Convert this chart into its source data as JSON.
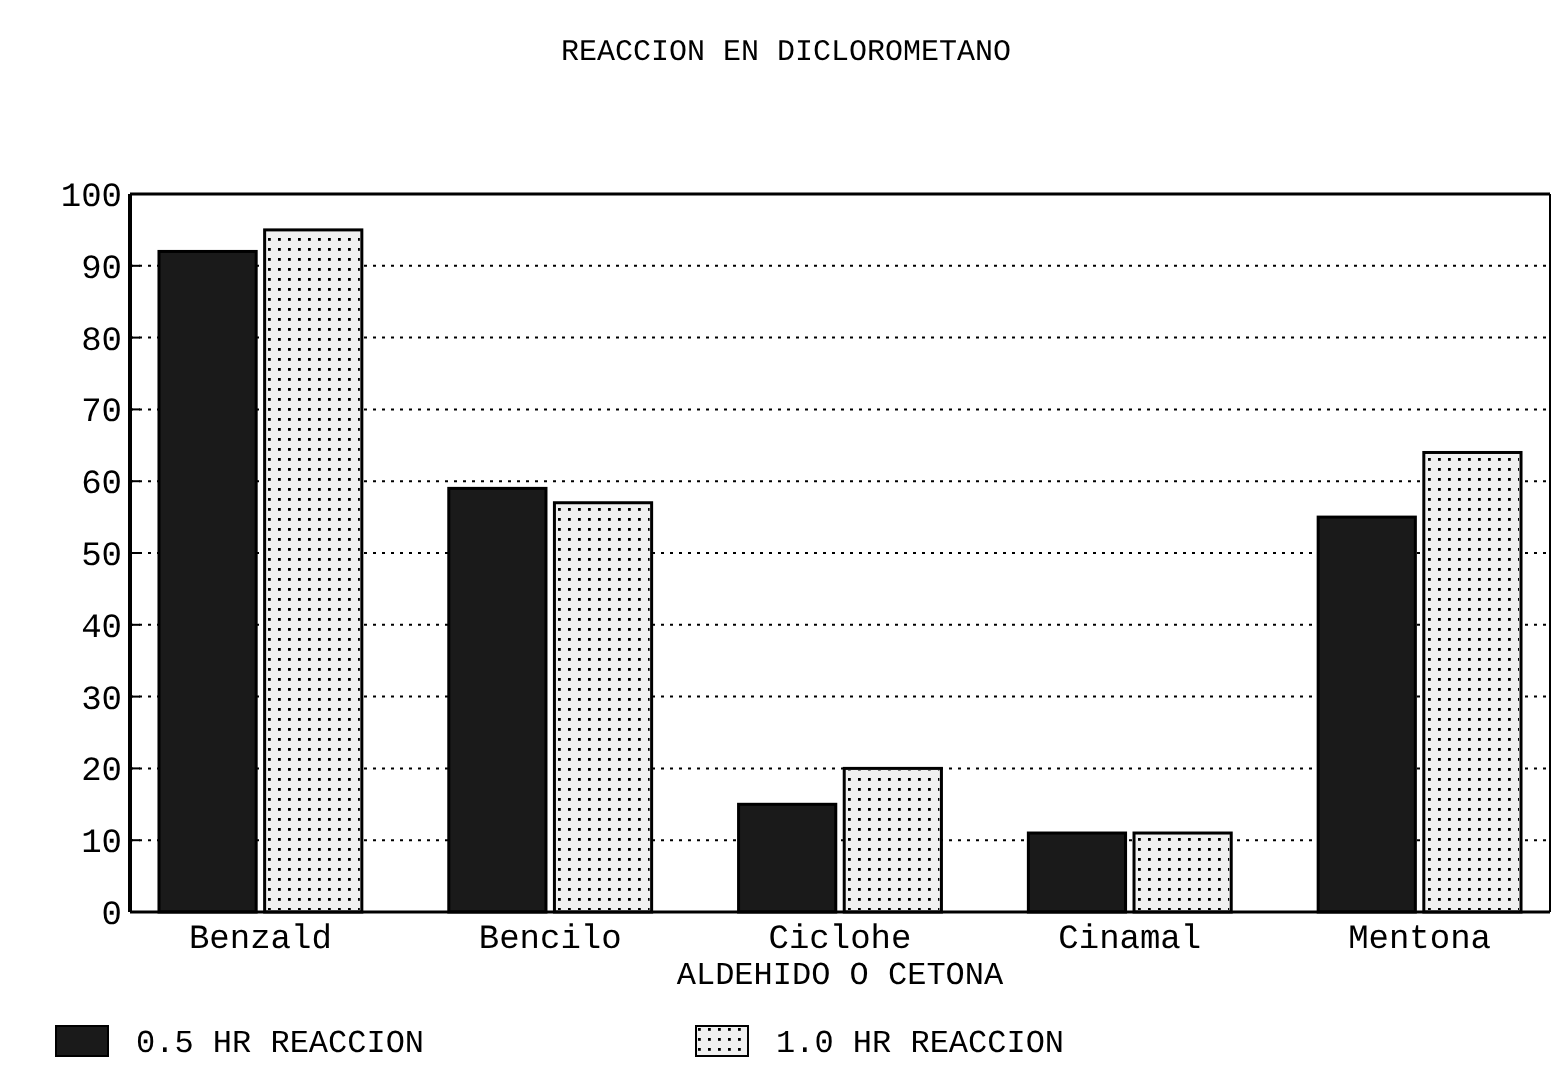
{
  "chart_data": {
    "type": "bar",
    "title": "REACCION EN DICLOROMETANO",
    "xlabel": "ALDEHIDO O CETONA",
    "categories": [
      "Benzald",
      "Bencilo",
      "Ciclohe",
      "Cinamal",
      "Mentona"
    ],
    "series": [
      {
        "name": "0.5 HR REACCION",
        "color": "#1a1a1a",
        "values": [
          92,
          59,
          15,
          11,
          55
        ]
      },
      {
        "name": "1.0 HR REACCION",
        "color": "#f0f0f0",
        "values": [
          95,
          57,
          20,
          11,
          64
        ]
      }
    ],
    "ylim": [
      0,
      100
    ],
    "yticks": [
      0,
      10,
      20,
      30,
      40,
      50,
      60,
      70,
      80,
      90,
      100
    ],
    "grid": "y",
    "legend": "bottom"
  }
}
